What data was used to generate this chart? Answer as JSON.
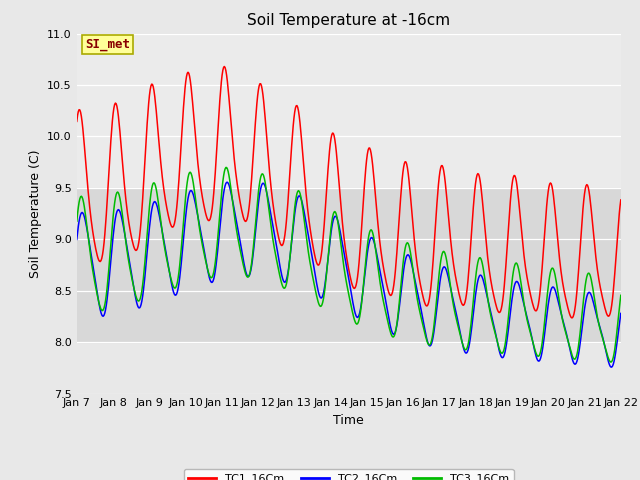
{
  "title": "Soil Temperature at -16cm",
  "xlabel": "Time",
  "ylabel": "Soil Temperature (C)",
  "ylim": [
    7.5,
    11.0
  ],
  "yticks": [
    7.5,
    8.0,
    8.5,
    9.0,
    9.5,
    10.0,
    10.5,
    11.0
  ],
  "xtick_labels": [
    "Jan 7",
    "Jan 8",
    "Jan 9",
    "Jan 10",
    "Jan 11",
    "Jan 12",
    "Jan 13",
    "Jan 14",
    "Jan 15",
    "Jan 16",
    "Jan 17",
    "Jan 18",
    "Jan 19",
    "Jan 20",
    "Jan 21",
    "Jan 22"
  ],
  "line_colors": [
    "#ff0000",
    "#0000ff",
    "#00bb00"
  ],
  "line_labels": [
    "TC1_16Cm",
    "TC2_16Cm",
    "TC3_16Cm"
  ],
  "annotation_text": "SI_met",
  "annotation_color": "#880000",
  "annotation_bg": "#ffff99",
  "annotation_edge": "#aaaa00",
  "bg_color": "#e8e8e8",
  "plot_bg": "#e8e8e8",
  "grid_color": "#ffffff",
  "title_fontsize": 11,
  "axis_fontsize": 9,
  "tick_fontsize": 8,
  "band_light": [
    9.5,
    11.0
  ],
  "band_medium": [
    8.0,
    9.5
  ],
  "band_light_color": "#ebebeb",
  "band_medium_color": "#d8d8d8"
}
